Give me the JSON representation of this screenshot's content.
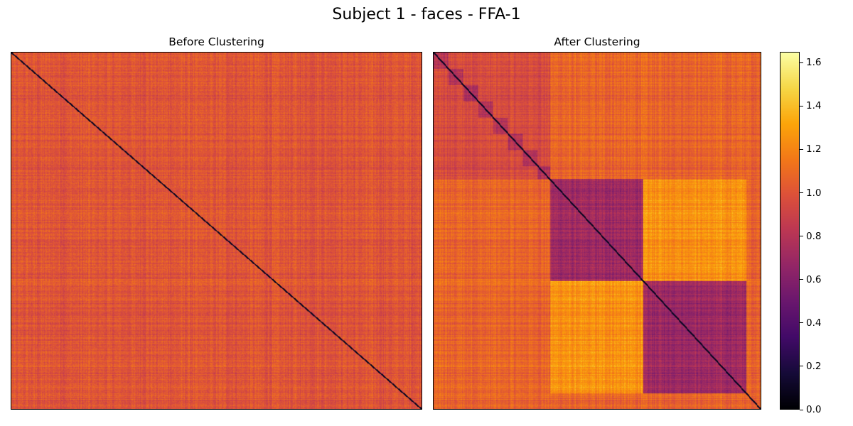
{
  "figure": {
    "title": "Subject 1 - faces - FFA-1"
  },
  "chart_data": [
    {
      "type": "heatmap",
      "title": "Before Clustering",
      "xlabel": "",
      "ylabel": "",
      "axes_ticks": false,
      "matrix": "dissimilarity, unordered",
      "diagonal_value": 0.0,
      "off_diagonal_typical": 1.0,
      "off_diagonal_range": [
        0.85,
        1.3
      ]
    },
    {
      "type": "heatmap",
      "title": "After Clustering",
      "xlabel": "",
      "ylabel": "",
      "axes_ticks": false,
      "matrix": "dissimilarity, rows/cols reordered by cluster",
      "diagonal_value": 0.0,
      "blocks": [
        {
          "within_value": 0.95,
          "note": "many small clusters"
        },
        {
          "within_value": 0.7
        },
        {
          "within_value": 0.7
        }
      ],
      "between_large_blocks_value": 1.25
    }
  ],
  "colorbar": {
    "colormap": "inferno",
    "vmin": 0.0,
    "vmax": 1.65,
    "ticks": [
      "0.0",
      "0.2",
      "0.4",
      "0.6",
      "0.8",
      "1.0",
      "1.2",
      "1.4",
      "1.6"
    ],
    "tick_values": [
      0.0,
      0.2,
      0.4,
      0.6,
      0.8,
      1.0,
      1.2,
      1.4,
      1.6
    ]
  }
}
